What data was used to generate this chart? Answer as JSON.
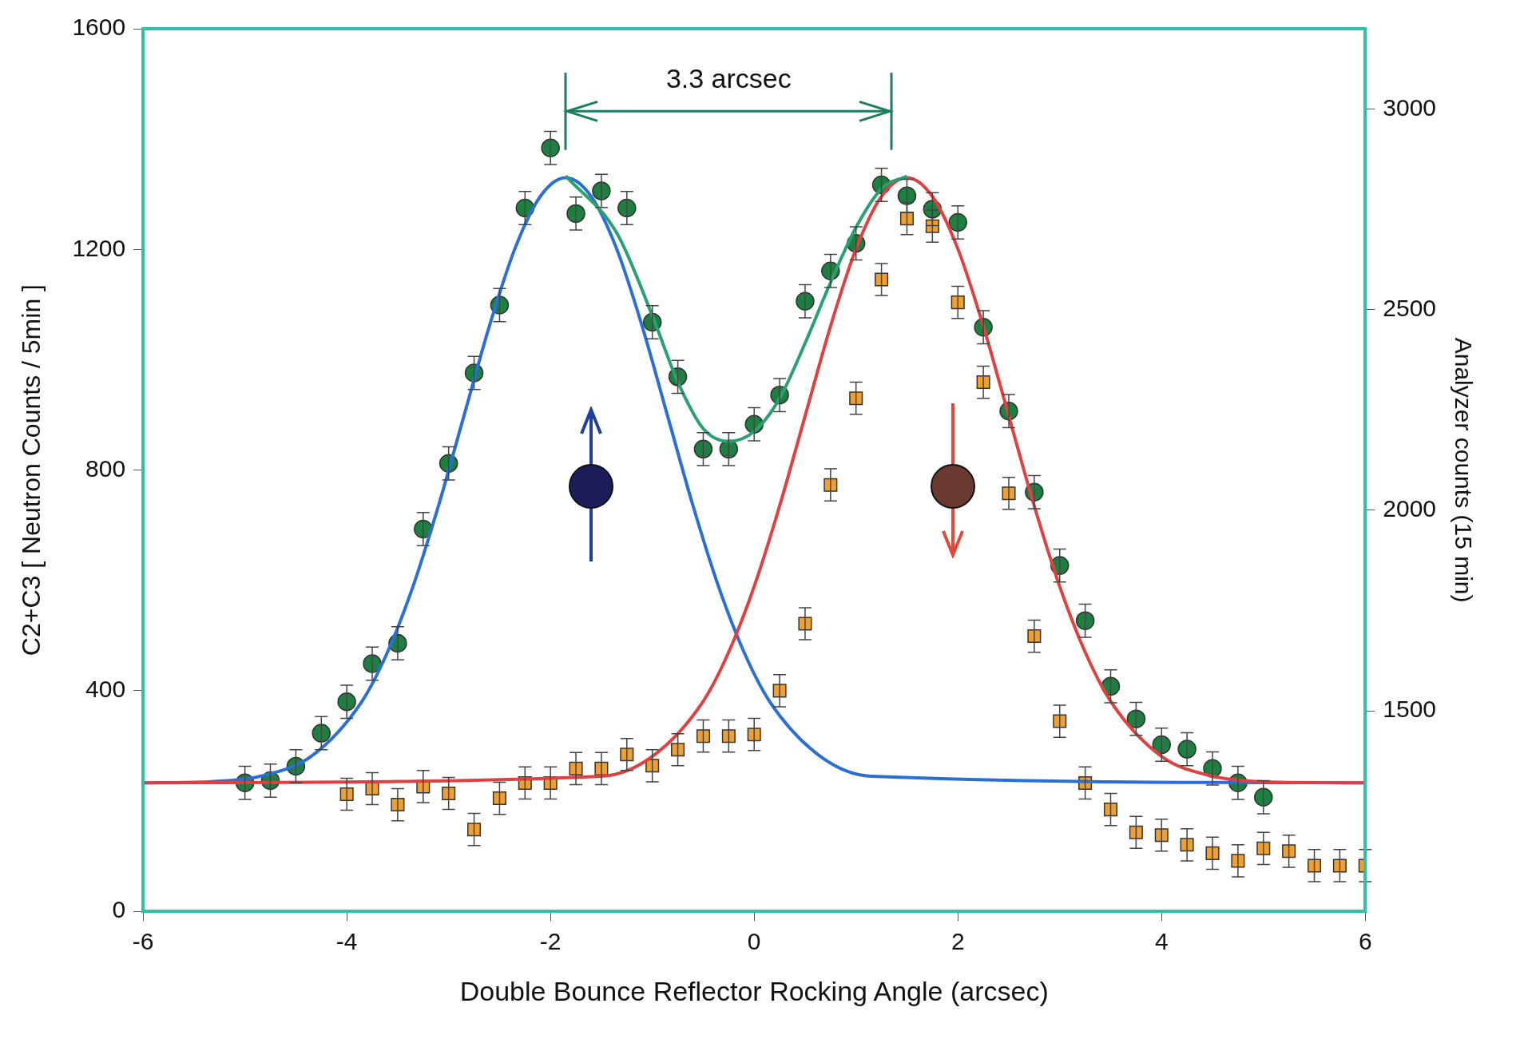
{
  "chart_data": {
    "type": "scatter",
    "xlabel": "Double Bounce Reflector Rocking Angle (arcsec)",
    "ylabel": "C2+C3 [ Neutron Counts / 5min ]",
    "y2label": "Analyzer counts (15 min)",
    "xlim": [
      -6,
      6
    ],
    "xticks": [
      -6,
      -4,
      -2,
      0,
      2,
      4,
      6
    ],
    "ylim": [
      0,
      1600
    ],
    "yticks": [
      0,
      400,
      800,
      1200,
      1600
    ],
    "y2lim": [
      1000,
      3200
    ],
    "y2ticks": [
      1500,
      2000,
      2500,
      3000
    ],
    "annotations": [
      "3.3 arcsec"
    ],
    "legend": false,
    "series": [
      {
        "marker": "circle",
        "color": "#1e8040",
        "x": [
          -5,
          -4.75,
          -4.5,
          -4.25,
          -4,
          -3.75,
          -3.5,
          -3.25,
          -3,
          -2.75,
          -2.5,
          -2.25,
          -2,
          -1.75,
          -1.5,
          -1.25,
          -1,
          -0.75,
          -0.5,
          -0.25,
          0,
          0.25,
          0.5,
          0.75,
          1,
          1.25,
          1.5,
          1.75,
          2,
          2.25,
          2.5,
          2.75,
          3,
          3.25,
          3.5,
          3.75,
          4,
          4.25,
          4.5,
          4.75,
          5
        ],
        "values": [
          233,
          237,
          263,
          323,
          380,
          449,
          486,
          693,
          812,
          976,
          1099,
          1275,
          1384,
          1265,
          1306,
          1275,
          1068,
          969,
          838,
          838,
          883,
          936,
          1106,
          1161,
          1211,
          1317,
          1297,
          1273,
          1249,
          1059,
          907,
          760,
          627,
          527,
          408,
          349,
          302,
          294,
          259,
          233,
          207
        ],
        "errors": [
          30,
          30,
          30,
          30,
          30,
          30,
          30,
          30,
          30,
          30,
          30,
          30,
          30,
          30,
          30,
          30,
          30,
          30,
          30,
          30,
          30,
          30,
          30,
          30,
          30,
          30,
          30,
          30,
          30,
          30,
          30,
          30,
          30,
          30,
          30,
          30,
          30,
          30,
          30,
          30,
          30
        ]
      },
      {
        "marker": "square",
        "axis": "y2",
        "color": "#f0a030",
        "x": [
          -4,
          -3.75,
          -3.5,
          -3.25,
          -3,
          -2.75,
          -2.5,
          -2.25,
          -2,
          -1.75,
          -1.5,
          -1.25,
          -1,
          -0.75,
          -0.5,
          -0.25,
          0,
          0.25,
          0.5,
          0.75,
          1,
          1.25,
          1.5,
          1.75,
          2,
          2.25,
          2.5,
          2.75,
          3,
          3.25,
          3.5,
          3.75,
          4,
          4.25,
          4.5,
          4.75,
          5,
          5.25,
          5.5,
          5.75,
          6
        ],
        "values": [
          1292,
          1306,
          1266,
          1311,
          1294,
          1204,
          1282,
          1320,
          1320,
          1356,
          1356,
          1391,
          1363,
          1403,
          1437,
          1437,
          1441,
          1550,
          1717,
          2063,
          2279,
          2575,
          2727,
          2708,
          2518,
          2319,
          2042,
          1686,
          1474,
          1320,
          1254,
          1197,
          1190,
          1166,
          1145,
          1126,
          1157,
          1150,
          1114,
          1114,
          1114
        ],
        "errors": [
          40,
          40,
          40,
          40,
          40,
          40,
          40,
          40,
          40,
          40,
          40,
          40,
          40,
          40,
          40,
          40,
          40,
          40,
          40,
          40,
          40,
          40,
          40,
          40,
          40,
          40,
          40,
          40,
          40,
          40,
          40,
          40,
          40,
          40,
          40,
          40,
          40,
          40,
          40,
          40,
          40
        ]
      },
      {
        "type": "line",
        "marker": "none",
        "color": "#2a6fd6",
        "x": [
          -6,
          -5.35,
          -4.85,
          -4.35,
          -3.85,
          -3.6,
          -3.35,
          -3.1,
          -2.85,
          -2.6,
          -2.35,
          -2.1,
          -1.85,
          -1.6,
          -1.35,
          -1.1,
          -0.85,
          -0.6,
          -0.35,
          -0.1,
          0.15,
          0.65,
          1.15,
          6
        ],
        "values": [
          233,
          235,
          245,
          281,
          381,
          470,
          589,
          735,
          898,
          1061,
          1201,
          1296,
          1330,
          1296,
          1201,
          1061,
          898,
          735,
          589,
          470,
          381,
          281,
          245,
          233
        ]
      },
      {
        "type": "line",
        "marker": "none",
        "color": "#e04040",
        "x": [
          -6,
          -1.5,
          -1,
          -0.5,
          -0.25,
          0,
          0.25,
          0.5,
          0.75,
          1,
          1.25,
          1.5,
          1.75,
          2,
          2.25,
          2.5,
          2.75,
          3,
          3.25,
          3.5,
          4,
          4.5,
          5,
          6
        ],
        "values": [
          233,
          245,
          281,
          381,
          470,
          589,
          735,
          898,
          1061,
          1201,
          1296,
          1330,
          1296,
          1201,
          1061,
          898,
          735,
          589,
          470,
          381,
          281,
          245,
          235,
          233
        ]
      },
      {
        "type": "line",
        "marker": "none",
        "color": "#2aa070",
        "x": [
          -1.85,
          -1.35,
          -1,
          -0.75,
          -0.5,
          -0.25,
          0,
          0.25,
          0.5,
          0.75,
          1,
          1.25,
          1.5
        ],
        "values": [
          1333,
          1230,
          1080,
          960,
          875,
          852,
          870,
          930,
          1030,
          1140,
          1240,
          1310,
          1333
        ]
      }
    ]
  }
}
